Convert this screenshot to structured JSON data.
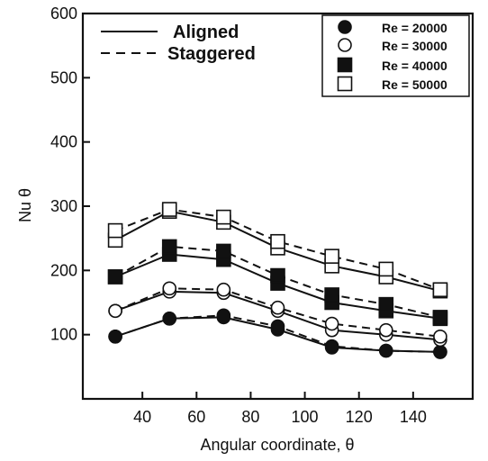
{
  "chart_data": {
    "type": "line",
    "xlabel": "Angular coordinate, θ",
    "ylabel": "Nu θ",
    "xlim": [
      18,
      162
    ],
    "ylim": [
      0,
      600
    ],
    "xticks": [
      40,
      60,
      80,
      100,
      120,
      140
    ],
    "yticks": [
      100,
      200,
      300,
      400,
      500,
      600
    ],
    "grid": false,
    "x": [
      30,
      50,
      70,
      90,
      110,
      130,
      150
    ],
    "line_styles": [
      {
        "name": "Aligned",
        "dash": "solid"
      },
      {
        "name": "Staggered",
        "dash": "dashed"
      }
    ],
    "marker_legend": [
      {
        "label": "Re = 20000",
        "marker": "filled-circle"
      },
      {
        "label": "Re = 30000",
        "marker": "open-circle"
      },
      {
        "label": "Re = 40000",
        "marker": "filled-square"
      },
      {
        "label": "Re = 50000",
        "marker": "open-square"
      }
    ],
    "series": [
      {
        "re": "Re = 20000",
        "arrangement": "Aligned",
        "marker": "filled-circle",
        "dash": "solid",
        "values": [
          97,
          125,
          127,
          108,
          80,
          75,
          73
        ]
      },
      {
        "re": "Re = 20000",
        "arrangement": "Staggered",
        "marker": "filled-circle",
        "dash": "dashed",
        "values": [
          97,
          125,
          130,
          113,
          82,
          75,
          73
        ]
      },
      {
        "re": "Re = 30000",
        "arrangement": "Aligned",
        "marker": "open-circle",
        "dash": "solid",
        "values": [
          137,
          167,
          165,
          137,
          107,
          100,
          92
        ]
      },
      {
        "re": "Re = 30000",
        "arrangement": "Staggered",
        "marker": "open-circle",
        "dash": "dashed",
        "values": [
          137,
          172,
          170,
          142,
          117,
          107,
          97
        ]
      },
      {
        "re": "Re = 40000",
        "arrangement": "Aligned",
        "marker": "filled-square",
        "dash": "solid",
        "values": [
          190,
          225,
          217,
          180,
          150,
          137,
          125
        ]
      },
      {
        "re": "Re = 40000",
        "arrangement": "Staggered",
        "marker": "filled-square",
        "dash": "dashed",
        "values": [
          190,
          237,
          230,
          192,
          162,
          147,
          127
        ]
      },
      {
        "re": "Re = 50000",
        "arrangement": "Aligned",
        "marker": "open-square",
        "dash": "solid",
        "values": [
          247,
          292,
          275,
          235,
          207,
          190,
          168
        ]
      },
      {
        "re": "Re = 50000",
        "arrangement": "Staggered",
        "marker": "open-square",
        "dash": "dashed",
        "values": [
          262,
          295,
          283,
          245,
          222,
          202,
          170
        ]
      }
    ]
  }
}
